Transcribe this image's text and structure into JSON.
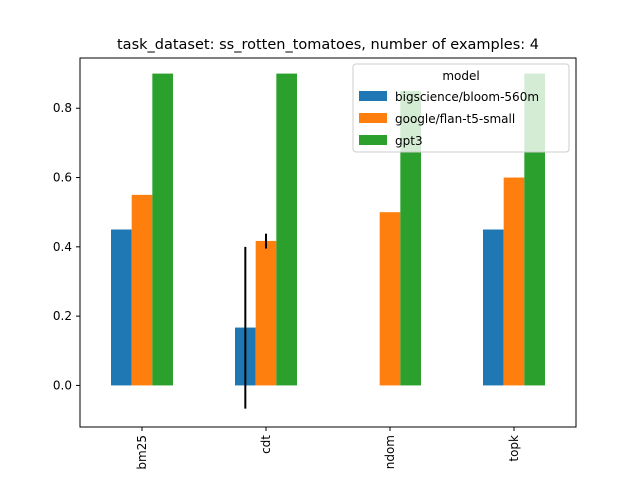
{
  "chart_data": {
    "type": "bar",
    "title": "task_dataset: ss_rotten_tomatoes, number of examples: 4",
    "xlabel": "",
    "ylabel": "",
    "categories": [
      "bm25",
      "cdt",
      "ndom",
      "topk"
    ],
    "ylim": [
      -0.12,
      0.945
    ],
    "yticks": [
      0.0,
      0.2,
      0.4,
      0.6,
      0.8
    ],
    "ytick_labels": [
      "0.0",
      "0.2",
      "0.4",
      "0.6",
      "0.8"
    ],
    "grid": false,
    "legend": {
      "title": "model",
      "placement": "top-right"
    },
    "series": [
      {
        "name": "bigscience/bloom-560m",
        "color": "#1f77b4",
        "values": [
          0.45,
          0.167,
          0.0,
          0.45
        ],
        "errors": [
          null,
          [
            -0.067,
            0.4
          ],
          null,
          null
        ]
      },
      {
        "name": "google/flan-t5-small",
        "color": "#ff7f0e",
        "values": [
          0.55,
          0.417,
          0.5,
          0.6
        ],
        "errors": [
          null,
          [
            0.395,
            0.438
          ],
          null,
          null
        ]
      },
      {
        "name": "gpt3",
        "color": "#2ca02c",
        "values": [
          0.9,
          0.9,
          0.85,
          0.9
        ],
        "errors": [
          null,
          null,
          null,
          null
        ]
      }
    ]
  }
}
